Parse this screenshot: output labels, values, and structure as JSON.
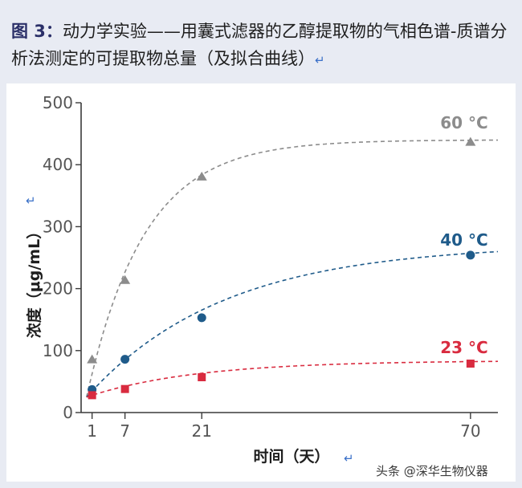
{
  "caption": {
    "figure_label": "图 3：",
    "text": "动力学实验——用囊式滤器的乙醇提取物的气相色谱-质谱分析法测定的可提取物总量（及拟合曲线）",
    "return_mark": "↵"
  },
  "chart_data": {
    "type": "scatter",
    "title": "",
    "xlabel": "时间（天）",
    "ylabel": "浓度（μg/mL）",
    "x_ticks": [
      1,
      7,
      21,
      70
    ],
    "y_ticks": [
      0,
      100,
      200,
      300,
      400,
      500
    ],
    "xlim": [
      -1,
      75
    ],
    "ylim": [
      0,
      500
    ],
    "grid": false,
    "series": [
      {
        "name": "60 °C",
        "color": "#8c8c8c",
        "marker": "triangle",
        "x": [
          1,
          7,
          21,
          70
        ],
        "y": [
          86,
          214,
          381,
          437
        ],
        "fit": {
          "model": "exponential_saturation",
          "y0": 25,
          "ymax": 440,
          "k": 0.095
        }
      },
      {
        "name": "40 °C",
        "color": "#1f5b8a",
        "marker": "circle",
        "x": [
          1,
          7,
          21,
          70
        ],
        "y": [
          37,
          86,
          153,
          254
        ],
        "fit": {
          "model": "exponential_saturation",
          "y0": 25,
          "ymax": 272,
          "k": 0.04
        }
      },
      {
        "name": "23 °C",
        "color": "#d92b3f",
        "marker": "square",
        "x": [
          1,
          7,
          21,
          70
        ],
        "y": [
          28,
          38,
          57,
          79
        ],
        "fit": {
          "model": "exponential_saturation",
          "y0": 25,
          "ymax": 84,
          "k": 0.05
        }
      }
    ]
  },
  "axis_return_mark": "↵",
  "watermark": "头条 @深华生物仪器"
}
